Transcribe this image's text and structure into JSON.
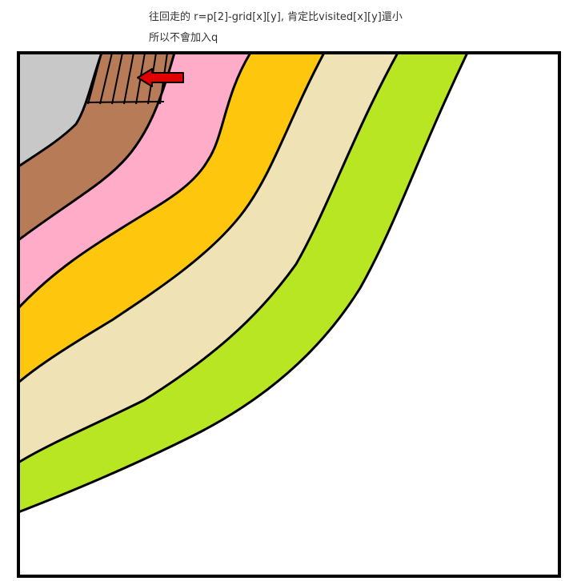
{
  "caption": {
    "line1": "往回走的  r=p[2]-grid[x][y], 肯定比visited[x][y]還小",
    "line2": "所以不會加入q"
  },
  "colors": {
    "frame": "#000000",
    "gray_region": "#c8c8c8",
    "brown_band": "#b87b58",
    "pink_band": "#ffacc8",
    "orange_band": "#ffc60e",
    "beige_band": "#efe3b5",
    "green_band": "#b8e622",
    "background": "#ffffff",
    "arrow": "#e00000"
  },
  "icons": {
    "arrow": "left-arrow-icon"
  }
}
